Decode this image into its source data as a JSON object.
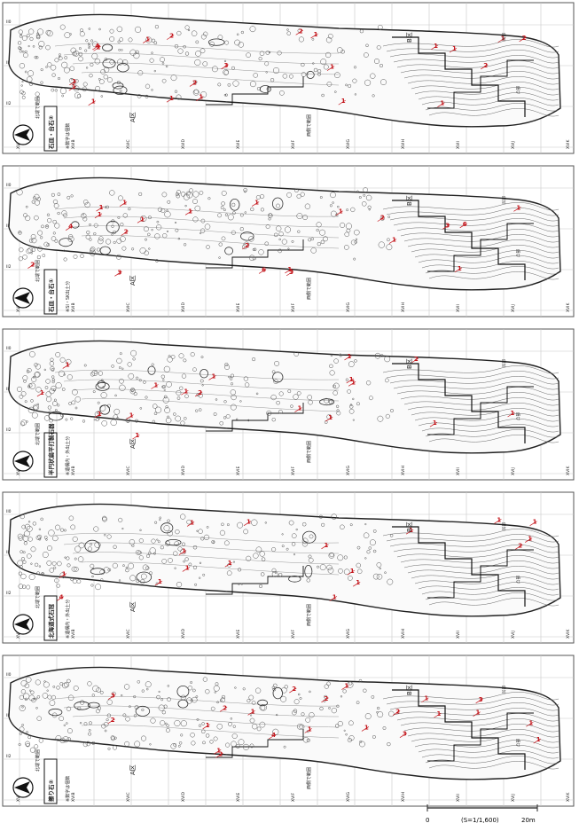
{
  "panels": [
    {
      "id": "panel-1",
      "boxed_title": "石皿・台石②",
      "note": "※数字は個数",
      "north_label": "北端で範囲",
      "area_a": "A区",
      "area_b": "B区",
      "site_label": "西側で範囲",
      "grid_x": [
        "XVIA",
        "XVIB",
        "XVIC",
        "XVID",
        "XVIE",
        "XVIF",
        "XVIG",
        "XVIH",
        "XVII",
        "XVIJ",
        "XVIK"
      ],
      "grid_y": [
        "II0",
        "II1",
        "II2"
      ],
      "counts": [
        "1",
        "2",
        "3",
        "1",
        "1",
        "2",
        "1",
        "1",
        "2",
        "1",
        "1",
        "2",
        "4",
        "2",
        "1",
        "1",
        "1",
        "1",
        "2",
        "1",
        "1"
      ],
      "legend_labels": [
        "凹部",
        "凸部"
      ]
    },
    {
      "id": "panel-2",
      "boxed_title": "石皿・台石①",
      "note": "※SI・SK出土分",
      "north_label": "北端で範囲",
      "area_a": "A区",
      "area_b": "B区",
      "site_label": "西側で範囲",
      "grid_x": [
        "XVIA",
        "XVIB",
        "XVIC",
        "XVID",
        "XVIE",
        "XVIF",
        "XVIG",
        "XVIH",
        "XVII",
        "XVIJ",
        "XVIK"
      ],
      "grid_y": [
        "II0",
        "II1",
        "II2"
      ],
      "counts": [
        "3",
        "6",
        "2",
        "1",
        "1",
        "1",
        "1",
        "3",
        "2",
        "1",
        "2",
        "1",
        "1",
        "4",
        "1",
        "6",
        "1",
        "1",
        "2",
        "1",
        "3"
      ],
      "legend_labels": [
        "凹部",
        "凸部"
      ]
    },
    {
      "id": "panel-3",
      "boxed_title": "半円状扁平打製石器",
      "note": "※遺構内・外出土分",
      "north_label": "北端で範囲",
      "area_a": "A区",
      "area_b": "B区",
      "site_label": "西側で範囲",
      "grid_x": [
        "XVIA",
        "XVIB",
        "XVIC",
        "XVID",
        "XVIE",
        "XVIF",
        "XVIG",
        "XVIH",
        "XVII",
        "XVIJ",
        "XVIK"
      ],
      "grid_y": [
        "II0",
        "II1",
        "II2"
      ],
      "counts": [
        "1",
        "1",
        "1",
        "1",
        "2",
        "1",
        "1",
        "1",
        "1",
        "1",
        "1",
        "1",
        "2",
        "1",
        "1",
        "1",
        "1"
      ],
      "legend_labels": [
        "凹部",
        "凸部"
      ]
    },
    {
      "id": "panel-4",
      "boxed_title": "北海道式石冠",
      "note": "※遺構内・外出土分",
      "north_label": "北端で範囲",
      "area_a": "A区",
      "area_b": "B区",
      "site_label": "西側で範囲",
      "grid_x": [
        "XVIA",
        "XVIB",
        "XVIC",
        "XVID",
        "XVIE",
        "XVIF",
        "XVIG",
        "XVIH",
        "XVII",
        "XVIJ",
        "XVIK"
      ],
      "grid_y": [
        "II0",
        "II1",
        "II2"
      ],
      "counts": [
        "1",
        "1",
        "1",
        "1",
        "2",
        "1",
        "1",
        "1",
        "1",
        "1",
        "1",
        "1",
        "4",
        "1",
        "1",
        "1",
        "1"
      ],
      "legend_labels": [
        "凹部",
        "凸部"
      ]
    },
    {
      "id": "panel-5",
      "boxed_title": "擦り石②",
      "note": "※数字は個数",
      "north_label": "北端で範囲",
      "area_a": "A区",
      "area_b": "B区",
      "site_label": "西側で範囲",
      "grid_x": [
        "XVIA",
        "XVIB",
        "XVIC",
        "XVID",
        "XVIE",
        "XVIF",
        "XVIG",
        "XVIH",
        "XVII",
        "XVIJ",
        "XVIK"
      ],
      "grid_y": [
        "II0",
        "II1",
        "II2"
      ],
      "counts": [
        "1",
        "2",
        "3",
        "1",
        "2",
        "4",
        "1",
        "1",
        "3",
        "1",
        "2",
        "1",
        "2",
        "1",
        "1",
        "2",
        "1",
        "1",
        "3",
        "2",
        "1"
      ],
      "legend_labels": [
        "凹部",
        "凸部"
      ]
    }
  ],
  "scale_bar": {
    "label": "(S=1/1,600)",
    "start": "0",
    "end": "20m"
  },
  "colors": {
    "count_red": "#c4161c",
    "line": "#333333",
    "grid": "#bbbbbb"
  }
}
